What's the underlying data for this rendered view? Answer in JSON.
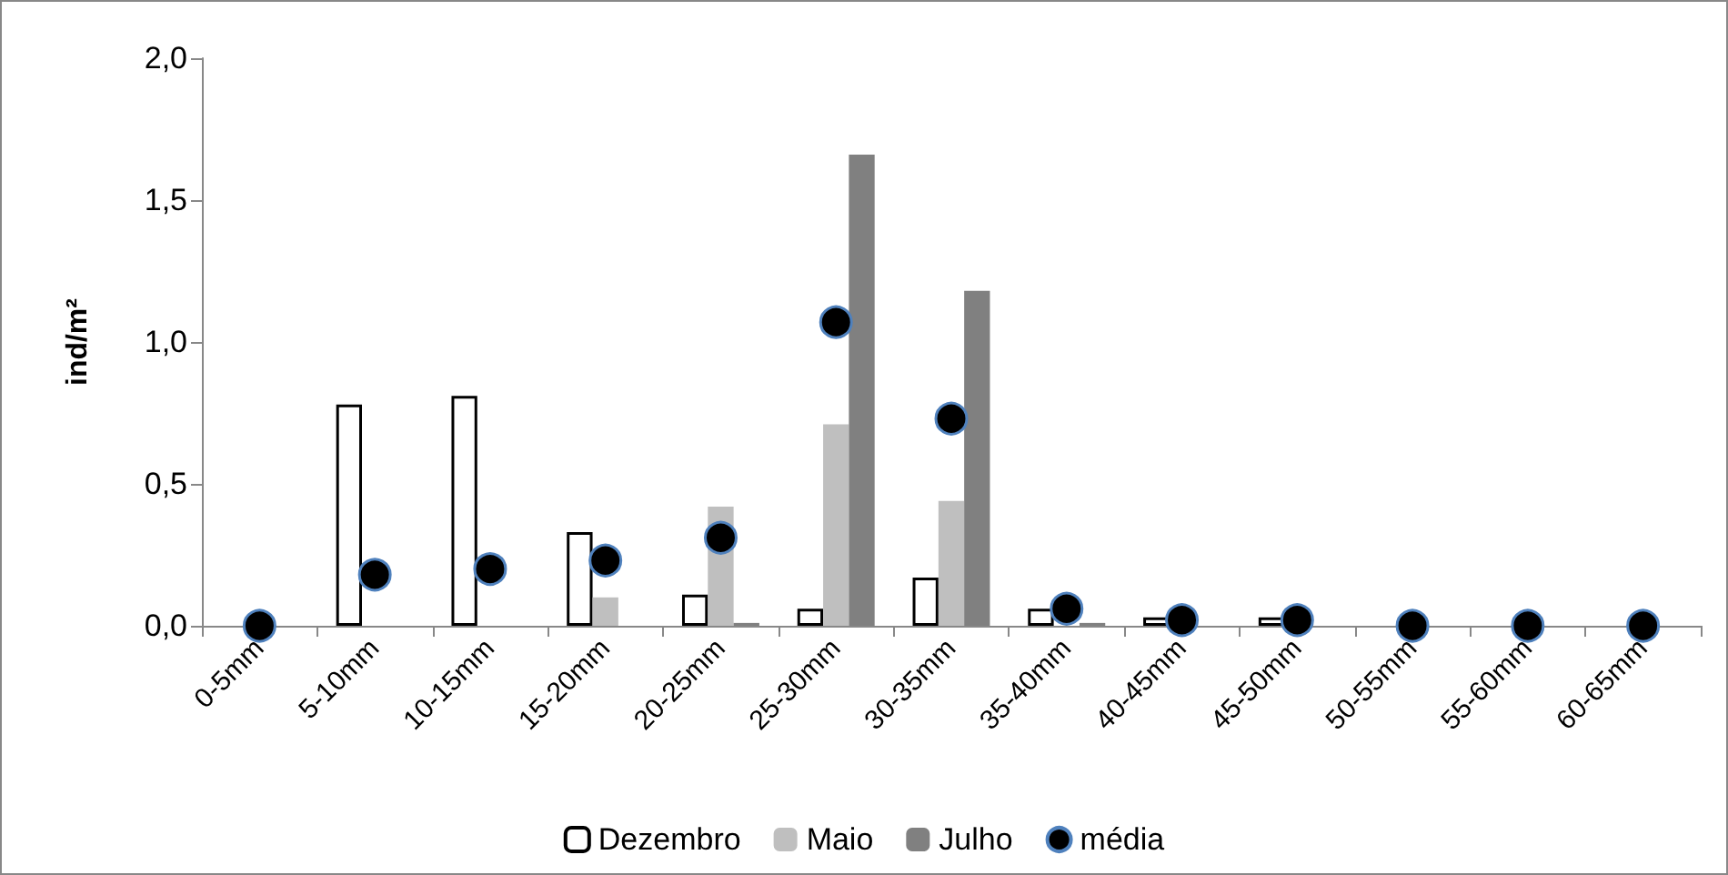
{
  "chart_data": {
    "type": "bar",
    "ylabel": "ind/m²",
    "categories": [
      "0-5mm",
      "5-10mm",
      "10-15mm",
      "15-20mm",
      "20-25mm",
      "25-30mm",
      "30-35mm",
      "35-40mm",
      "40-45mm",
      "45-50mm",
      "50-55mm",
      "55-60mm",
      "60-65mm"
    ],
    "series": [
      {
        "name": "Dezembro",
        "color": "#ffffff",
        "values": [
          0,
          0.78,
          0.81,
          0.33,
          0.11,
          0.06,
          0.17,
          0.06,
          0.03,
          0.03,
          0,
          0,
          0
        ]
      },
      {
        "name": "Maio",
        "color": "#bfbfbf",
        "values": [
          0,
          0,
          0,
          0.1,
          0.42,
          0.71,
          0.44,
          null,
          0,
          0,
          0,
          0,
          0
        ]
      },
      {
        "name": "Julho",
        "color": "#808080",
        "values": [
          0,
          0,
          0,
          0,
          0.01,
          1.66,
          1.18,
          0.01,
          0,
          0,
          0,
          0,
          0
        ]
      },
      {
        "name": "média",
        "type": "scatter",
        "color": "#000000",
        "marker": "circle",
        "x": [
          "0-5mm",
          "5-10mm",
          "10-15mm",
          "15-20mm",
          "20-25mm",
          "25-30mm",
          "30-35mm",
          "35-40mm",
          "40-45mm",
          "45-50mm",
          "50-55mm",
          "55-60mm",
          "60-65mm"
        ],
        "values": [
          0,
          0.18,
          0.2,
          0.23,
          0.31,
          1.07,
          0.73,
          0.06,
          0.02,
          0.02,
          0,
          0,
          0
        ]
      }
    ],
    "ylim": [
      0,
      2
    ],
    "yticks": [
      {
        "value": 0,
        "label": "0,0"
      },
      {
        "value": 0.5,
        "label": "0,5"
      },
      {
        "value": 1,
        "label": "1,0"
      },
      {
        "value": 1.5,
        "label": "1,5"
      },
      {
        "value": 2,
        "label": "2,0"
      }
    ],
    "grid": false,
    "legend": "bottom"
  }
}
